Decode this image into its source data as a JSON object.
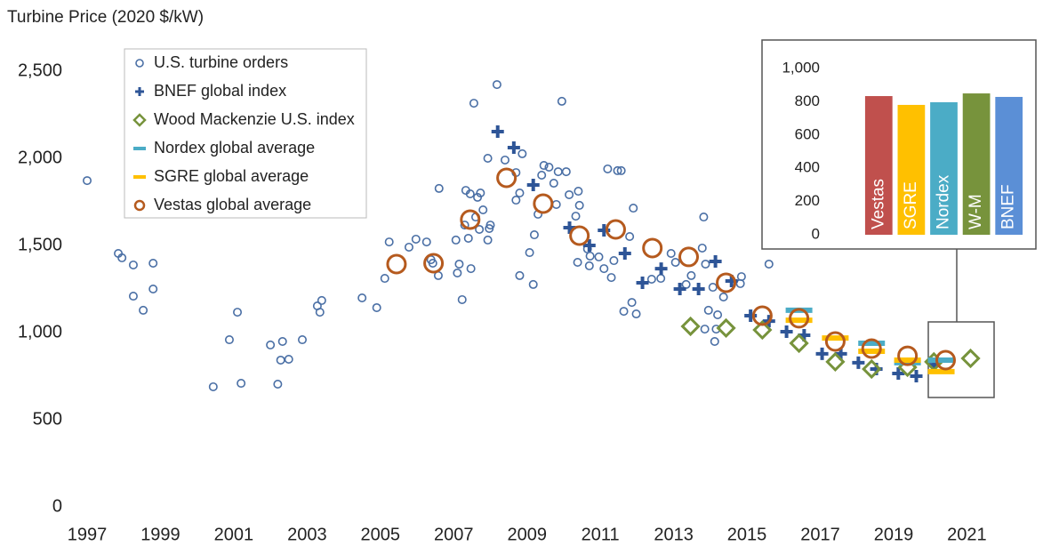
{
  "chart_data": [
    {
      "type": "scatter",
      "y_label": "Turbine Price (2020 $/kW)",
      "xlim": [
        1997,
        2022.3
      ],
      "ylim": [
        0,
        2500
      ],
      "xticks": [
        1997,
        1999,
        2001,
        2003,
        2005,
        2007,
        2009,
        2011,
        2013,
        2015,
        2017,
        2019,
        2021
      ],
      "yticks": [
        0,
        500,
        {
          "value": 1000,
          "label": "1,000"
        },
        {
          "value": 1500,
          "label": "1,500"
        },
        {
          "value": 2000,
          "label": "2,000"
        },
        {
          "value": 2500,
          "label": "2,500"
        }
      ],
      "legend": "upper left",
      "series": [
        {
          "name": "U.S. turbine orders",
          "color": "#4a6fa5",
          "marker": "circle",
          "x": [
            1997.0,
            1997.85,
            1997.95,
            1998.26,
            1998.26,
            1998.53,
            1998.8,
            1998.8,
            2000.44,
            2000.88,
            2001.1,
            2001.2,
            2002.0,
            2002.2,
            2002.33,
            2002.28,
            2002.5,
            2002.87,
            2003.28,
            2003.4,
            2003.35,
            2004.5,
            2004.9,
            2005.12,
            2005.24,
            2005.78,
            2005.97,
            2006.26,
            2006.38,
            2006.43,
            2006.58,
            2006.6,
            2007.06,
            2007.1,
            2007.15,
            2007.23,
            2007.3,
            2007.33,
            2007.4,
            2007.45,
            2007.47,
            2007.55,
            2007.6,
            2007.65,
            2007.7,
            2007.73,
            2007.8,
            2007.93,
            2007.93,
            2008.0,
            2007.97,
            2008.18,
            2008.4,
            2008.7,
            2008.7,
            2008.8,
            2008.8,
            2008.87,
            2009.07,
            2009.17,
            2009.2,
            2009.3,
            2009.4,
            2009.46,
            2009.6,
            2009.73,
            2009.8,
            2009.85,
            2009.95,
            2010.07,
            2010.15,
            2010.33,
            2010.38,
            2010.4,
            2010.43,
            2010.65,
            2010.7,
            2010.72,
            2010.96,
            2011.1,
            2011.2,
            2011.3,
            2011.37,
            2011.47,
            2011.57,
            2011.64,
            2011.8,
            2011.86,
            2011.9,
            2011.98,
            2012.4,
            2012.65,
            2012.93,
            2013.05,
            2013.34,
            2013.48,
            2013.78,
            2013.82,
            2013.87,
            2013.85,
            2013.95,
            2014.07,
            2014.12,
            2014.16,
            2014.2,
            2014.36,
            2014.82,
            2014.85,
            2015.6
          ],
          "values": [
            1872,
            1454,
            1429,
            1388,
            1209,
            1128,
            1398,
            1250,
            689,
            959,
            1117,
            709,
            929,
            704,
            949,
            842,
            847,
            959,
            1153,
            1184,
            1117,
            1199,
            1143,
            1311,
            1520,
            1490,
            1536,
            1520,
            1418,
            1398,
            1327,
            1827,
            1531,
            1342,
            1393,
            1189,
            1617,
            1816,
            1541,
            1796,
            1367,
            2316,
            1663,
            1776,
            1592,
            1801,
            1704,
            1531,
            2000,
            1617,
            1597,
            2423,
            1990,
            1918,
            1760,
            1801,
            1327,
            2026,
            1459,
            1276,
            1561,
            1679,
            1903,
            1959,
            1949,
            1857,
            1735,
            1923,
            2327,
            1923,
            1791,
            1668,
            1403,
            1811,
            1730,
            1480,
            1383,
            1439,
            1434,
            1367,
            1939,
            1316,
            1413,
            1929,
            1929,
            1122,
            1551,
            1173,
            1714,
            1107,
            1306,
            1311,
            1454,
            1403,
            1276,
            1327,
            1485,
            1663,
            1393,
            1020,
            1128,
            1260,
            949,
            1020,
            1102,
            1204,
            1281,
            1321,
            1393
          ]
        },
        {
          "name": "BNEF global index",
          "color": "#2e5597",
          "marker": "plus",
          "x": [
            2008.2,
            2008.64,
            2009.17,
            2010.16,
            2010.7,
            2011.1,
            2011.67,
            2012.15,
            2012.66,
            2013.17,
            2013.68,
            2014.14,
            2014.58,
            2015.1,
            2015.6,
            2016.08,
            2016.56,
            2017.05,
            2017.56,
            2018.04,
            2018.53,
            2019.13,
            2019.62,
            2020.1
          ],
          "values": [
            2153,
            2061,
            1847,
            1602,
            1500,
            1587,
            1454,
            1286,
            1367,
            1250,
            1250,
            1408,
            1296,
            1097,
            1066,
            1005,
            985,
            878,
            878,
            827,
            791,
            765,
            750,
            816
          ]
        },
        {
          "name": "Wood Mackenzie U.S. index",
          "color": "#77933c",
          "marker": "diamond",
          "x": [
            2013.46,
            2014.43,
            2015.42,
            2016.42,
            2017.41,
            2018.4,
            2019.38,
            2020.1,
            2021.1
          ],
          "values": [
            1036,
            1026,
            1015,
            939,
            832,
            791,
            801,
            832,
            852
          ]
        },
        {
          "name": "Nordex global average",
          "color": "#4bacc6",
          "marker": "dash",
          "x": [
            2016.42,
            2018.4,
            2019.38,
            2020.3
          ],
          "values": [
            1128,
            939,
            827,
            842
          ]
        },
        {
          "name": "SGRE global average",
          "color": "#ffc000",
          "marker": "dash",
          "x": [
            2016.42,
            2017.41,
            2018.4,
            2019.38,
            2020.3
          ],
          "values": [
            1071,
            969,
            893,
            842,
            776
          ]
        },
        {
          "name": "Vestas global average",
          "color": "#b55a1e",
          "marker": "ring",
          "x": [
            2005.44,
            2006.45,
            2007.45,
            2008.44,
            2009.44,
            2010.43,
            2011.42,
            2012.42,
            2013.41,
            2014.43,
            2015.42,
            2016.42,
            2017.41,
            2018.4,
            2019.38,
            2020.42
          ],
          "values": [
            1393,
            1398,
            1648,
            1888,
            1740,
            1556,
            1592,
            1485,
            1434,
            1286,
            1097,
            1082,
            949,
            908,
            867,
            842
          ]
        }
      ]
    },
    {
      "type": "bar",
      "categories": [
        "Vestas",
        "SGRE",
        "Nordex",
        "W-M",
        "BNEF"
      ],
      "values": [
        834,
        781,
        797,
        850,
        829
      ],
      "colors": [
        "#c0504d",
        "#ffc000",
        "#4bacc6",
        "#77933c",
        "#5b8fd6"
      ],
      "ylim": [
        0,
        1000
      ],
      "yticks": [
        0,
        200,
        400,
        600,
        800,
        {
          "value": 1000,
          "label": "1,000"
        }
      ]
    }
  ]
}
